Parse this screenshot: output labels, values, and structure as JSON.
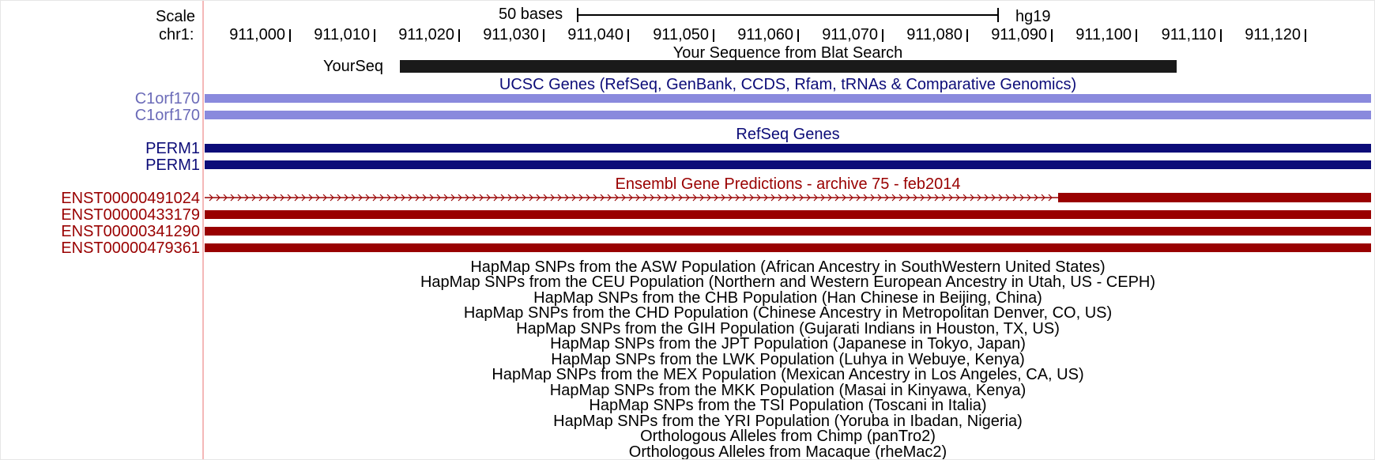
{
  "ruler": {
    "scale_label": "Scale",
    "chrom_label": "chr1:",
    "scale_bar_label": "50 bases",
    "assembly": "hg19",
    "positions": [
      "911,000",
      "911,010",
      "911,020",
      "911,030",
      "911,040",
      "911,050",
      "911,060",
      "911,070",
      "911,080",
      "911,090",
      "911,100",
      "911,110",
      "911,120"
    ]
  },
  "blat": {
    "title": "Your Sequence from Blat Search",
    "label": "YourSeq"
  },
  "ucsc_genes": {
    "title": "UCSC Genes (RefSeq, GenBank, CCDS, Rfam, tRNAs & Comparative Genomics)",
    "color": "#8a8add",
    "labels": [
      "C1orf170",
      "C1orf170"
    ]
  },
  "refseq": {
    "title": "RefSeq Genes",
    "color": "#0c0c78",
    "labels": [
      "PERM1",
      "PERM1"
    ]
  },
  "ensembl": {
    "title": "Ensembl Gene Predictions - archive 75 - feb2014",
    "color": "#990000",
    "labels": [
      "ENST00000491024",
      "ENST00000433179",
      "ENST00000341290",
      "ENST00000479361"
    ]
  },
  "other_tracks": [
    "HapMap SNPs from the ASW Population (African Ancestry in SouthWestern United States)",
    "HapMap SNPs from the CEU Population (Northern and Western European Ancestry in Utah, US - CEPH)",
    "HapMap SNPs from the CHB Population (Han Chinese in Beijing, China)",
    "HapMap SNPs from the CHD Population (Chinese Ancestry in Metropolitan Denver, CO, US)",
    "HapMap SNPs from the GIH Population (Gujarati Indians in Houston, TX, US)",
    "HapMap SNPs from the JPT Population (Japanese in Tokyo, Japan)",
    "HapMap SNPs from the LWK Population (Luhya in Webuye, Kenya)",
    "HapMap SNPs from the MEX Population (Mexican Ancestry in Los Angeles, CA, US)",
    "HapMap SNPs from the MKK Population (Masai in Kinyawa, Kenya)",
    "HapMap SNPs from the TSI Population (Toscani in Italia)",
    "HapMap SNPs from the YRI Population (Yoruba in Ibadan, Nigeria)",
    "Orthologous Alleles from Chimp (panTro2)",
    "Orthologous Alleles from Macaque (rheMac2)"
  ]
}
